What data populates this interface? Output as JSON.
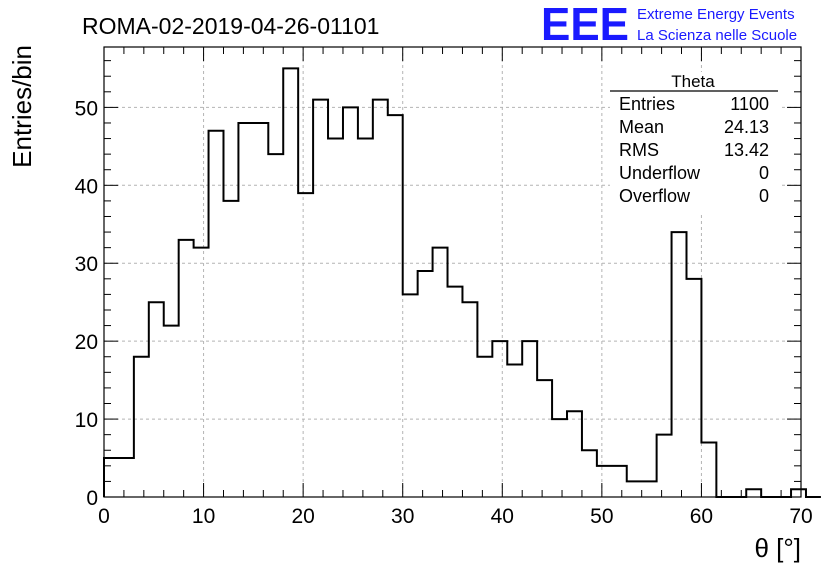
{
  "header": {
    "run_title": "ROMA-02-2019-04-26-01101"
  },
  "logo": {
    "mark": "EEE",
    "line1": "Extreme Energy Events",
    "line2": "La Scienza nelle Scuole",
    "color": "#1a1aff"
  },
  "stats_box": {
    "title": "Theta",
    "rows": [
      {
        "label": "Entries",
        "value": "1100"
      },
      {
        "label": "Mean",
        "value": "24.13"
      },
      {
        "label": "RMS",
        "value": "13.42"
      },
      {
        "label": "Underflow",
        "value": "0"
      },
      {
        "label": "Overflow",
        "value": "0"
      }
    ]
  },
  "chart_data": {
    "type": "bar",
    "style": "step-histogram",
    "xlabel": "θ [°]",
    "ylabel": "Entries/bin",
    "xlim": [
      0,
      70
    ],
    "ylim": [
      0,
      57.75
    ],
    "bin_width": 1.5,
    "bin_start": 0,
    "x_ticks": [
      0,
      10,
      20,
      30,
      40,
      50,
      60,
      70
    ],
    "y_ticks": [
      0,
      10,
      20,
      30,
      40,
      50
    ],
    "grid": true,
    "values": [
      5,
      5,
      18,
      25,
      22,
      33,
      32,
      47,
      38,
      48,
      48,
      44,
      55,
      39,
      51,
      46,
      50,
      46,
      51,
      49,
      26,
      29,
      32,
      27,
      25,
      18,
      20,
      17,
      20,
      15,
      10,
      11,
      6,
      4,
      4,
      2,
      2,
      8,
      34,
      28,
      7,
      0,
      0,
      1,
      0,
      0,
      1,
      0
    ],
    "line_color": "#000000",
    "grid_color": "#b4b4b4"
  }
}
